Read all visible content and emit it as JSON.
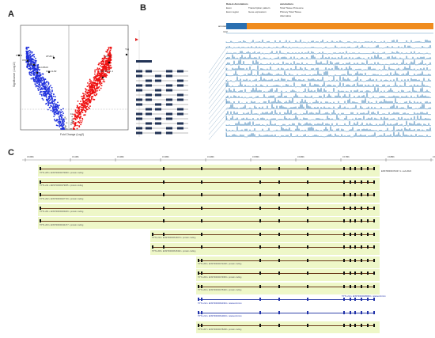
{
  "panels": {
    "a": "A",
    "b": "B",
    "c": "C"
  },
  "volcano": {
    "xlabel": "Fold Change (Log2)",
    "ylabel": "Significance (-Log10)",
    "genes_left": [
      "PTYG",
      "OSM7",
      "ZNF1",
      "ATH6.1",
      "SLC25A9",
      "CCL11-82"
    ],
    "genes_right": [
      "CFDG",
      "ACSS1171.1",
      "Ypg"
    ],
    "colors": {
      "down": "#2233dd",
      "up": "#ee1111",
      "ns": "#999999"
    }
  },
  "gtex": {
    "legend_title": "Data & Annotations",
    "legend_items": [
      "Exon",
      "Transcription pattern",
      "Exon region",
      "Gene expression",
      "Total Tissue Proteome",
      "Primary Total Tissue",
      "Alternative"
    ],
    "legend_sub": "annotations",
    "row_labels": [
      "annotation",
      "total"
    ]
  },
  "browser": {
    "coord_labels": [
      "3.10Mb",
      "3.11Mb",
      "3.12Mb",
      "3.13Mb",
      "3.14Mb",
      "3.15Mb",
      "3.16Mb",
      "3.17Mb",
      "3.18Mb",
      "3.19Mb"
    ],
    "side_label": "ENST00000471047.1 • sub.2024",
    "transcripts": [
      {
        "label": "TPT1-205 • ENST00000379060 • protein coding",
        "color": "brown"
      },
      {
        "label": "TPT1-211 • ENST00000379055 • protein coding",
        "color": "brown"
      },
      {
        "label": "TPT1-202 • ENST00000407716 • protein coding",
        "color": "brown"
      },
      {
        "label": "TPT1-201 • ENST00000309246 • protein coding",
        "color": "brown"
      },
      {
        "label": "TPT1-203 • ENST00000434477 • protein coding",
        "color": "brown"
      },
      {
        "label": "TPT1-210 • ENST00000616673 • protein coding",
        "color": "brown"
      },
      {
        "label": "TPT1-208 • ENST00000615362 • protein coding",
        "color": "brown"
      },
      {
        "label": "TPT1-206 • ENST00000472228 • protein coding",
        "color": "brown"
      },
      {
        "label": "TPT1-209 • ENST00000479353 • protein coding",
        "color": "brown"
      },
      {
        "label": "TPT1-204 • ENST00000475300 • protein coding",
        "color": "brown"
      },
      {
        "label": "TPT1-212 • ENST00000623364 • retained intron",
        "color": "blue"
      },
      {
        "label": "TPT1-213 • ENST00000610043 • retained intron",
        "color": "blue"
      },
      {
        "label": "TPT1-207 • ENST00000478298 • protein coding",
        "color": "brown"
      }
    ],
    "right_labels": [
      "TPT1-214 • ENST00000480063 • retained intron"
    ]
  }
}
